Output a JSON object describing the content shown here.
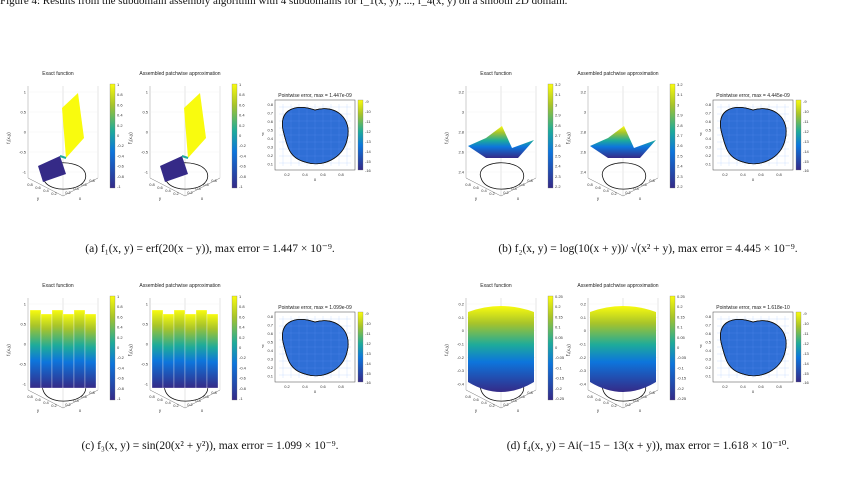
{
  "top_text": "Figure 4: Results from the subdomain assembly algorithm with 4 subdomains for f_1(x, y), ..., f_4(x, y) on a smooth 2D domain.",
  "panels": [
    {
      "titles": [
        "Exact function",
        "Assembled patchwise approximation",
        "Pointwise error, max = 1.447e-09"
      ],
      "zlabel_exact": "f₁(x,y)",
      "zlabel_approx": "f̃₁(x,y)",
      "ticks_z": [
        "1",
        "0.5",
        "0",
        "-0.5",
        "-1"
      ],
      "cb_ticks": [
        "1",
        "0.8",
        "0.6",
        "0.4",
        "0.2",
        "0",
        "-0.2",
        "-0.4",
        "-0.6",
        "-0.8",
        "-1"
      ],
      "err_cb_ticks": [
        "-9",
        "-10",
        "-11",
        "-12",
        "-13",
        "-14",
        "-15",
        "-16"
      ],
      "caption": "(a) f₁(x, y) = erf(20(x − y)), max error = 1.447 × 10⁻⁹."
    },
    {
      "titles": [
        "Exact function",
        "Assembled patchwise approximation",
        "Pointwise error, max = 4.445e-09"
      ],
      "zlabel_exact": "f₂(x,y)",
      "zlabel_approx": "f̃₂(x,y)",
      "ticks_z": [
        "3.2",
        "3",
        "2.8",
        "2.6",
        "2.4"
      ],
      "cb_ticks": [
        "3.2",
        "3.1",
        "3",
        "2.9",
        "2.8",
        "2.7",
        "2.6",
        "2.5",
        "2.4",
        "2.3",
        "2.2"
      ],
      "err_cb_ticks": [
        "-9",
        "-10",
        "-11",
        "-12",
        "-13",
        "-14",
        "-15",
        "-16"
      ],
      "caption": "(b) f₂(x, y) = log(10(x + y))/ √(x² + y), max error = 4.445 × 10⁻⁹."
    },
    {
      "titles": [
        "Exact function",
        "Assembled patchwise approximation",
        "Pointwise error, max = 1.099e-09"
      ],
      "zlabel_exact": "f₃(x,y)",
      "zlabel_approx": "f̃₃(x,y)",
      "ticks_z": [
        "1",
        "0.5",
        "0",
        "-0.5",
        "-1"
      ],
      "cb_ticks": [
        "1",
        "0.8",
        "0.6",
        "0.4",
        "0.2",
        "0",
        "-0.2",
        "-0.4",
        "-0.6",
        "-0.8",
        "-1"
      ],
      "err_cb_ticks": [
        "-9",
        "-10",
        "-11",
        "-12",
        "-13",
        "-14",
        "-15",
        "-16"
      ],
      "caption": "(c) f₃(x, y) = sin(20(x² + y²)), max error = 1.099 × 10⁻⁹."
    },
    {
      "titles": [
        "Exact function",
        "Assembled patchwise approximation",
        "Pointwise error, max = 1.618e-10"
      ],
      "zlabel_exact": "f₄(x,y)",
      "zlabel_approx": "f̃₄(x,y)",
      "ticks_z": [
        "0.2",
        "0.1",
        "0",
        "-0.1",
        "-0.2",
        "-0.3",
        "-0.4"
      ],
      "cb_ticks": [
        "0.25",
        "0.2",
        "0.15",
        "0.1",
        "0.05",
        "0",
        "-0.05",
        "-0.1",
        "-0.15",
        "-0.2",
        "-0.25"
      ],
      "err_cb_ticks": [
        "-9",
        "-10",
        "-11",
        "-12",
        "-13",
        "-14",
        "-15",
        "-16"
      ],
      "caption": "(d) f₄(x, y) = Ai(−15 − 13(x + y)), max error = 1.618 × 10⁻¹⁰."
    }
  ],
  "common": {
    "err_xticks": [
      "0.2",
      "0.4",
      "0.6",
      "0.8"
    ],
    "err_yticks": [
      "0.8",
      "0.7",
      "0.6",
      "0.5",
      "0.4",
      "0.3",
      "0.2",
      "0.1"
    ],
    "x_label": "x",
    "y_label": "y",
    "axis_ticks_3d": [
      "0.8",
      "0.6",
      "0.4",
      "0.2",
      "0.2",
      "0.4",
      "0.6",
      "0.8"
    ]
  },
  "colors": {
    "parula_low": "#352a87",
    "parula_mid": "#1eab9a",
    "parula_high": "#f9fb0e",
    "error_fill": "#2f6fd6"
  }
}
